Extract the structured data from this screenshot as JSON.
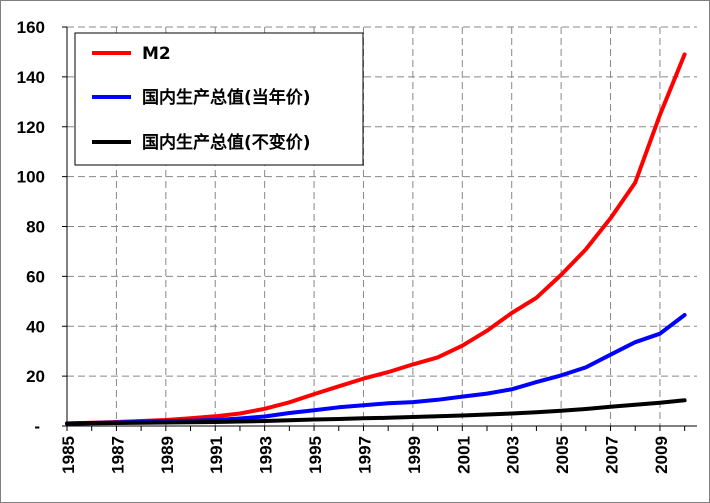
{
  "chart_data": {
    "type": "line",
    "title": "",
    "xlabel": "",
    "ylabel": "",
    "x": [
      1985,
      1986,
      1987,
      1988,
      1989,
      1990,
      1991,
      1992,
      1993,
      1994,
      1995,
      1996,
      1997,
      1998,
      1999,
      2000,
      2001,
      2002,
      2003,
      2004,
      2005,
      2006,
      2007,
      2008,
      2009,
      2010
    ],
    "xlim": [
      1985,
      2010.5
    ],
    "ylim": [
      0,
      160
    ],
    "y_ticks": [
      {
        "value": 0,
        "label": "-"
      },
      {
        "value": 20,
        "label": "20"
      },
      {
        "value": 40,
        "label": "40"
      },
      {
        "value": 60,
        "label": "60"
      },
      {
        "value": 80,
        "label": "80"
      },
      {
        "value": 100,
        "label": "100"
      },
      {
        "value": 120,
        "label": "120"
      },
      {
        "value": 140,
        "label": "140"
      },
      {
        "value": 160,
        "label": "160"
      }
    ],
    "x_ticks": [
      {
        "value": 1985,
        "label": "1985"
      },
      {
        "value": 1987,
        "label": "1987"
      },
      {
        "value": 1989,
        "label": "1989"
      },
      {
        "value": 1991,
        "label": "1991"
      },
      {
        "value": 1993,
        "label": "1993"
      },
      {
        "value": 1995,
        "label": "1995"
      },
      {
        "value": 1997,
        "label": "1997"
      },
      {
        "value": 1999,
        "label": "1999"
      },
      {
        "value": 2001,
        "label": "2001"
      },
      {
        "value": 2003,
        "label": "2003"
      },
      {
        "value": 2005,
        "label": "2005"
      },
      {
        "value": 2007,
        "label": "2007"
      },
      {
        "value": 2009,
        "label": "2009"
      }
    ],
    "grid": "dashed-both",
    "legend_position": "top-left",
    "series": [
      {
        "name": "M2",
        "color": "#ff0000",
        "values": [
          1.0,
          1.3,
          1.6,
          2.0,
          2.4,
          3.1,
          3.9,
          5.0,
          6.9,
          9.5,
          12.8,
          15.9,
          19.0,
          21.6,
          24.7,
          27.5,
          32.2,
          38.2,
          45.3,
          51.4,
          60.6,
          70.8,
          83.3,
          97.6,
          124.7,
          149.0
        ]
      },
      {
        "name": "国内生产总值(当年价)",
        "color": "#0000ff",
        "values": [
          1.0,
          1.2,
          1.4,
          1.7,
          1.9,
          2.1,
          2.4,
          3.0,
          3.8,
          5.2,
          6.3,
          7.5,
          8.3,
          9.1,
          9.6,
          10.5,
          11.8,
          13.0,
          14.7,
          17.6,
          20.3,
          23.5,
          28.6,
          33.6,
          37.0,
          44.5
        ]
      },
      {
        "name": "国内生产总值(不变价)",
        "color": "#000000",
        "values": [
          1.0,
          1.1,
          1.2,
          1.3,
          1.4,
          1.5,
          1.6,
          1.8,
          2.0,
          2.3,
          2.6,
          2.8,
          3.1,
          3.3,
          3.6,
          3.9,
          4.2,
          4.6,
          5.0,
          5.5,
          6.1,
          6.8,
          7.7,
          8.5,
          9.3,
          10.3
        ]
      }
    ]
  }
}
